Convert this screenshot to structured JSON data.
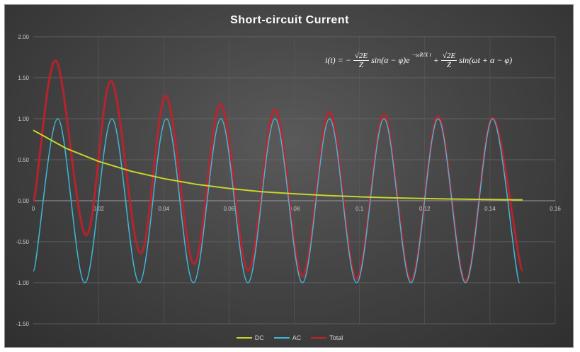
{
  "chart_data": {
    "type": "line",
    "title": "Short-circuit Current",
    "xlim": [
      0,
      0.16
    ],
    "ylim": [
      -1.5,
      2.0
    ],
    "x_ticks": [
      "0",
      "0.02",
      "0.04",
      "0.06",
      "0.08",
      "0.1",
      "0.12",
      "0.14",
      "0.16"
    ],
    "y_ticks": [
      "2.00",
      "1.50",
      "1.00",
      "0.50",
      "0.00",
      "-0.50",
      "-1.00",
      "-1.50"
    ],
    "grid": true,
    "legend_position": "bottom",
    "formula": {
      "lhs": "i(t) = −",
      "frac1_num": "√2E",
      "frac1_den": "Z",
      "mid": "sin(α − φ)e",
      "exponent": "−ωR/X t",
      "plus": "+",
      "frac2_num": "√2E",
      "frac2_den": "Z",
      "tail": "sin(ωt + α − φ)"
    },
    "series": [
      {
        "name": "DC",
        "color": "#c8d42a",
        "x": [
          0,
          0.01,
          0.02,
          0.03,
          0.04,
          0.05,
          0.06,
          0.07,
          0.08,
          0.09,
          0.1,
          0.11,
          0.12,
          0.13,
          0.14,
          0.15
        ],
        "values": [
          0.86,
          0.64,
          0.48,
          0.36,
          0.27,
          0.2,
          0.15,
          0.11,
          0.085,
          0.064,
          0.048,
          0.036,
          0.027,
          0.02,
          0.015,
          0.011
        ]
      },
      {
        "name": "AC",
        "color": "#3fb7d6",
        "x": [
          0,
          0.0075,
          0.0158,
          0.0241,
          0.0325,
          0.0408,
          0.0491,
          0.0575,
          0.0658,
          0.0741,
          0.0825,
          0.0908,
          0.0991,
          0.1075,
          0.1158,
          0.1241,
          0.1325,
          0.1408,
          0.1491
        ],
        "values": [
          -0.86,
          1.0,
          -1.0,
          1.0,
          -1.0,
          1.0,
          -1.0,
          1.0,
          -1.0,
          1.0,
          -1.0,
          1.0,
          -1.0,
          1.0,
          -1.0,
          1.0,
          -1.0,
          1.0,
          -1.0
        ]
      },
      {
        "name": "Total",
        "color": "#c8202a",
        "x": [
          0,
          0.0068,
          0.0162,
          0.0238,
          0.0329,
          0.0406,
          0.0493,
          0.0574,
          0.0659,
          0.0741,
          0.0825,
          0.0908,
          0.0991,
          0.1075,
          0.1158,
          0.1241,
          0.1325,
          0.1408,
          0.15
        ],
        "values": [
          0.0,
          1.71,
          -0.42,
          1.46,
          -0.64,
          1.28,
          -0.77,
          1.18,
          -0.85,
          1.11,
          -0.92,
          1.08,
          -0.95,
          1.05,
          -0.97,
          1.03,
          -0.98,
          1.01,
          -0.85
        ]
      }
    ]
  }
}
